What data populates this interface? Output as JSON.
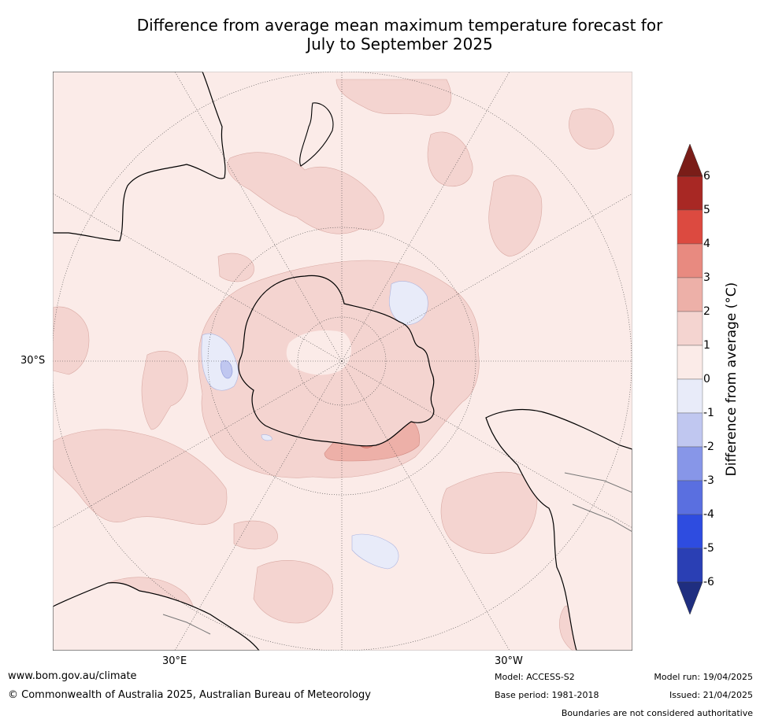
{
  "title": {
    "line1": "Difference from average mean maximum temperature forecast for",
    "line2": "July to September 2025"
  },
  "map": {
    "projection": "south-polar-stereographic",
    "lat_label": "30°S",
    "lon_labels": {
      "east": "30°E",
      "west": "30°W"
    },
    "fill_color": "#fbebe8"
  },
  "colorbar": {
    "label": "Difference from average (°C)",
    "ticks": [
      "6",
      "5",
      "4",
      "3",
      "2",
      "1",
      "0",
      "-1",
      "-2",
      "-3",
      "-4",
      "-5",
      "-6"
    ],
    "bins": [
      {
        "range": "5 to 6",
        "color": "#a82824"
      },
      {
        "range": "4 to 5",
        "color": "#dc4a40"
      },
      {
        "range": "3 to 4",
        "color": "#e88a80"
      },
      {
        "range": "2 to 3",
        "color": "#edb0a8"
      },
      {
        "range": "1 to 2",
        "color": "#f4d4d0"
      },
      {
        "range": "0 to 1",
        "color": "#fbebe8"
      },
      {
        "range": "-1 to 0",
        "color": "#e8ebf9"
      },
      {
        "range": "-2 to -1",
        "color": "#c0c7f0"
      },
      {
        "range": "-3 to -2",
        "color": "#8796e8"
      },
      {
        "range": "-4 to -3",
        "color": "#5a6fe0"
      },
      {
        "range": "-5 to -4",
        "color": "#2e4ce0"
      },
      {
        "range": "-6 to -5",
        "color": "#2a3fb4"
      }
    ],
    "over_color": "#7a1d18",
    "under_color": "#1f2e80"
  },
  "footer": {
    "website": "www.bom.gov.au/climate",
    "copyright": "© Commonwealth of Australia 2025, Australian Bureau of Meteorology",
    "model": "Model: ACCESS-S2",
    "base_period": "Base period: 1981-2018",
    "model_run": "Model run: 19/04/2025",
    "issued": "Issued: 21/04/2025",
    "disclaimer": "Boundaries are not considered authoritative"
  }
}
